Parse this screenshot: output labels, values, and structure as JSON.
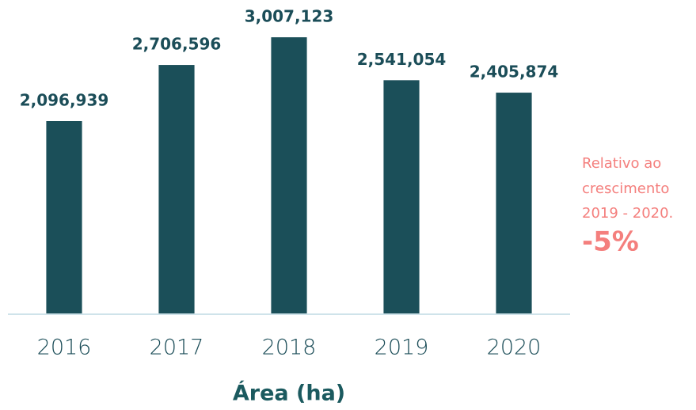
{
  "chart_data": {
    "type": "bar",
    "x_label": "Área (ha)",
    "categories": [
      "2016",
      "2017",
      "2018",
      "2019",
      "2020"
    ],
    "values": [
      2096939,
      2706596,
      3007123,
      2541054,
      2405874
    ],
    "value_labels": [
      "2,096,939",
      "2,706,596",
      "3,007,123",
      "2,541,054",
      "2,405,874"
    ],
    "color": "#1b4f59",
    "ylim": [
      0,
      3240000
    ],
    "annotations": [
      "Relativo ao",
      "crescimento",
      "2019 - 2020.",
      "-5%"
    ]
  }
}
